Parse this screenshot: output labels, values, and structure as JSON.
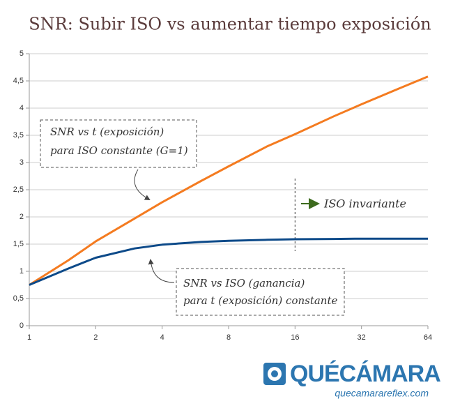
{
  "chart_data": {
    "type": "line",
    "title": "SNR: Subir ISO vs aumentar tiempo exposición",
    "x": [
      1,
      1.5,
      2,
      3,
      4,
      6,
      8,
      12,
      16,
      24,
      32,
      48,
      64
    ],
    "series": [
      {
        "name": "SNR vs t",
        "color": "#f47b20",
        "values": [
          0.75,
          1.2,
          1.55,
          1.97,
          2.27,
          2.66,
          2.93,
          3.3,
          3.52,
          3.85,
          4.07,
          4.37,
          4.58
        ]
      },
      {
        "name": "SNR vs ISO",
        "color": "#0d4a89",
        "values": [
          0.75,
          1.05,
          1.25,
          1.42,
          1.49,
          1.54,
          1.56,
          1.58,
          1.59,
          1.595,
          1.6,
          1.6,
          1.6
        ]
      }
    ],
    "xlim": [
      1,
      64
    ],
    "xticks": [
      1,
      2,
      4,
      8,
      16,
      32,
      64
    ],
    "log_x": true,
    "ylim": [
      0,
      5
    ],
    "yticks": [
      0,
      {
        "value": 0.5,
        "label": "0,5"
      },
      1,
      {
        "value": 1.5,
        "label": "1,5"
      },
      2,
      {
        "value": 2.5,
        "label": "2,5"
      },
      3,
      {
        "value": 3.5,
        "label": "3,5"
      },
      4,
      {
        "value": 4.5,
        "label": "4,5"
      },
      5
    ],
    "grid": true,
    "annotations": [
      {
        "lines": [
          "SNR vs t (exposición)",
          "para ISO constante (G=1)"
        ]
      },
      {
        "lines": [
          "SNR vs ISO (ganancia)",
          "para t (exposición) constante"
        ]
      }
    ],
    "vline": {
      "x": 16,
      "label": "ISO invariante"
    }
  },
  "logo": {
    "name": "QUÉCÁMARA",
    "url": "quecamarareflex.com"
  }
}
